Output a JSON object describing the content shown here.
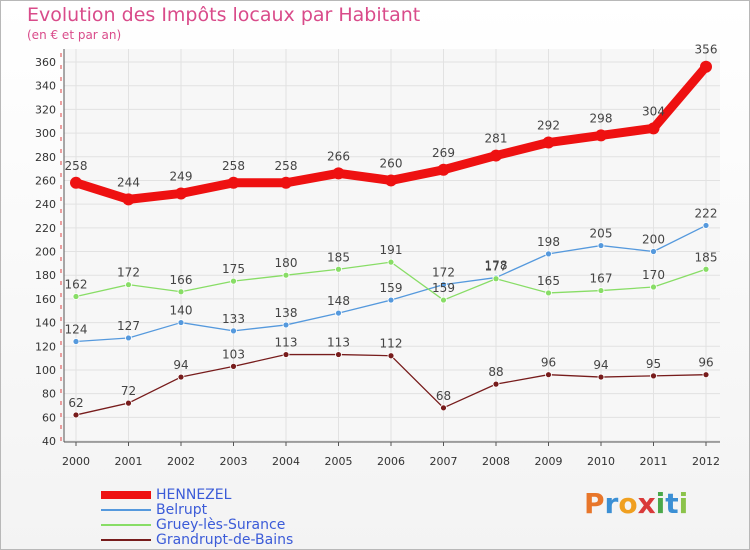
{
  "chart_title": "Evolution des Impôts locaux par Habitant",
  "chart_subtitle": "(en € et par an)",
  "chart_data": {
    "type": "line",
    "title": "Evolution des Impôts locaux par Habitant",
    "subtitle": "(en € et par an)",
    "xlabel": "",
    "ylabel": "",
    "x": [
      "2000",
      "2001",
      "2002",
      "2003",
      "2004",
      "2005",
      "2006",
      "2007",
      "2008",
      "2009",
      "2010",
      "2011",
      "2012"
    ],
    "ylim": [
      40,
      360
    ],
    "yticks": [
      40,
      60,
      80,
      100,
      120,
      140,
      160,
      180,
      200,
      220,
      240,
      260,
      280,
      300,
      320,
      340,
      360
    ],
    "grid": true,
    "legend_position": "bottom-left",
    "series": [
      {
        "name": "HENNEZEL",
        "color": "#ee1111",
        "values": [
          258,
          244,
          249,
          258,
          258,
          266,
          260,
          269,
          281,
          292,
          298,
          304,
          356
        ]
      },
      {
        "name": "Belrupt",
        "color": "#5599dd",
        "values": [
          124,
          127,
          140,
          133,
          138,
          148,
          159,
          172,
          178,
          198,
          205,
          200,
          222
        ]
      },
      {
        "name": "Gruey-lès-Surance",
        "color": "#88dd66",
        "values": [
          162,
          172,
          166,
          175,
          180,
          185,
          191,
          159,
          177,
          165,
          167,
          170,
          185
        ]
      },
      {
        "name": "Grandrupt-de-Bains",
        "color": "#771c1c",
        "values": [
          62,
          72,
          94,
          103,
          113,
          113,
          112,
          68,
          88,
          96,
          94,
          95,
          96
        ]
      }
    ]
  },
  "logo": {
    "letters": [
      {
        "ch": "P",
        "color": "#e8762a"
      },
      {
        "ch": "r",
        "color": "#3b8fd4"
      },
      {
        "ch": "o",
        "color": "#f0a020"
      },
      {
        "ch": "x",
        "color": "#d93a3a"
      },
      {
        "ch": "i",
        "color": "#4aa84a"
      },
      {
        "ch": "t",
        "color": "#3b8fd4"
      },
      {
        "ch": "i",
        "color": "#8bc34a"
      }
    ]
  }
}
